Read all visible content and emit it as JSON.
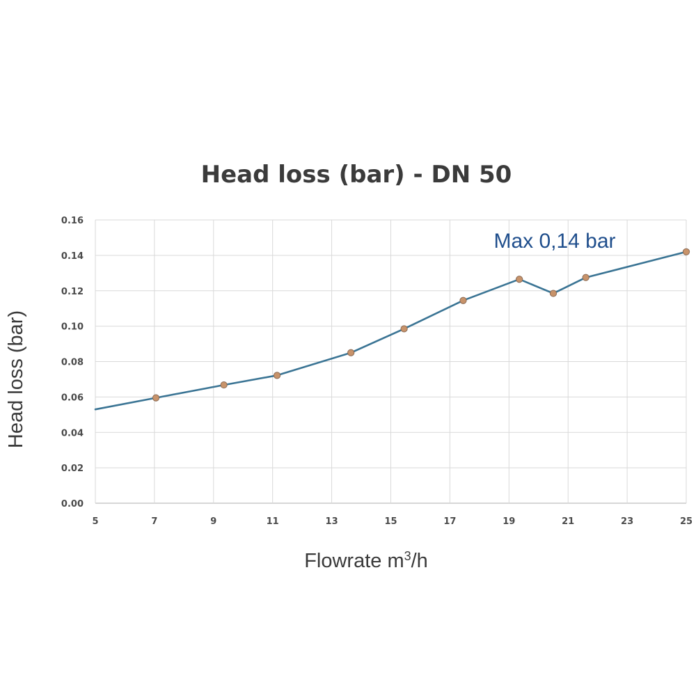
{
  "chart_data": {
    "type": "line",
    "title": "Head loss (bar) - DN 50",
    "xlabel_main": "Flowrate m",
    "xlabel_sup": "3",
    "xlabel_tail": "/h",
    "ylabel": "Head loss (bar)",
    "xlim": [
      5,
      25
    ],
    "ylim": [
      0,
      0.16
    ],
    "x_ticks": [
      "5",
      "7",
      "9",
      "11",
      "13",
      "15",
      "17",
      "19",
      "21",
      "23",
      "25"
    ],
    "y_ticks": [
      "0.00",
      "0.02",
      "0.04",
      "0.06",
      "0.08",
      "0.10",
      "0.12",
      "0.14",
      "0.16"
    ],
    "grid": true,
    "annotation": "Max 0,14 bar",
    "colors": {
      "line": "#3a7494",
      "marker_fill": "#c8936a",
      "marker_stroke": "#8a6a54",
      "annotation": "#1f4e8c"
    },
    "series": [
      {
        "x": [
          5.0,
          7.05,
          9.35,
          11.15,
          13.65,
          15.45,
          17.45,
          19.35,
          20.5,
          21.6,
          25.0
        ],
        "y": [
          0.053,
          0.0595,
          0.0668,
          0.0722,
          0.085,
          0.0985,
          0.1145,
          0.1265,
          0.1185,
          0.1275,
          0.142
        ],
        "markers": [
          false,
          true,
          true,
          true,
          true,
          true,
          true,
          true,
          true,
          true,
          true
        ]
      }
    ]
  }
}
